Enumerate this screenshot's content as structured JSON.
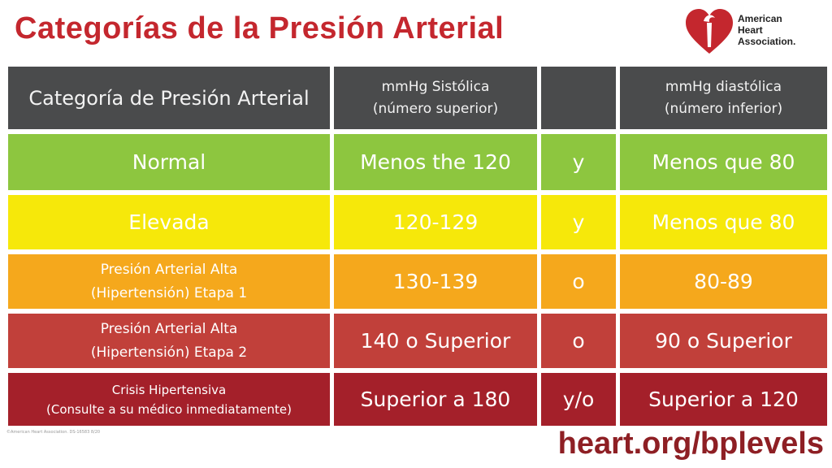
{
  "title": "Categorías de la Presión Arterial",
  "logo": {
    "line1": "American",
    "line2": "Heart",
    "line3": "Association."
  },
  "header": {
    "category": "Categoría de Presión Arterial",
    "systolic_line1": "mmHg Sistólica",
    "systolic_line2": "(número superior)",
    "connector": "",
    "diastolic_line1": "mmHg diastólica",
    "diastolic_line2": "(número inferior)"
  },
  "rows": [
    {
      "category_line1": "Normal",
      "category_line2": "",
      "systolic": "Menos the 120",
      "connector": "y",
      "diastolic": "Menos que 80"
    },
    {
      "category_line1": "Elevada",
      "category_line2": "",
      "systolic": "120-129",
      "connector": "y",
      "diastolic": "Menos que 80"
    },
    {
      "category_line1": "Presión Arterial Alta",
      "category_line2": "(Hipertensión) Etapa 1",
      "systolic": "130-139",
      "connector": "o",
      "diastolic": "80-89"
    },
    {
      "category_line1": "Presión Arterial Alta",
      "category_line2": "(Hipertensión) Etapa 2",
      "systolic": "140 o Superior",
      "connector": "o",
      "diastolic": "90 o Superior"
    },
    {
      "category_line1": "Crisis Hipertensiva",
      "category_line2": "(Consulte a su médico inmediatamente)",
      "systolic": "Superior a 180",
      "connector": "y/o",
      "diastolic": "Superior a 120"
    }
  ],
  "footnote": "©American Heart Association. DS-16583 8/20",
  "url": "heart.org/bplevels",
  "colors": {
    "title": "#c4272e",
    "header": "#4a4b4c",
    "normal": "#8dc63f",
    "elevated": "#f6e80a",
    "stage1": "#f5a81c",
    "stage2": "#c1403a",
    "crisis": "#a4202a",
    "url": "#8e1f24"
  }
}
